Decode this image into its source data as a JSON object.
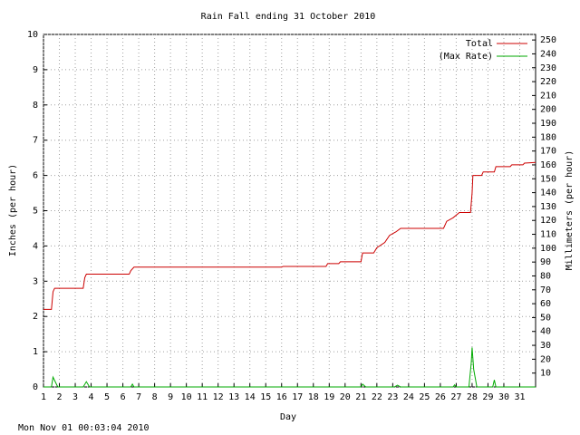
{
  "chart_data": {
    "type": "line",
    "title": "Rain Fall ending 31 October 2010",
    "x_label": "Day",
    "y_label": "Inches (per hour)",
    "y2_label": "Millimeters (per hour)",
    "footer": "Mon Nov 01 00:03:04 2010",
    "xlim": [
      1,
      32
    ],
    "xticks": [
      1,
      2,
      3,
      4,
      5,
      6,
      7,
      8,
      9,
      10,
      11,
      12,
      13,
      14,
      15,
      16,
      17,
      18,
      19,
      20,
      21,
      22,
      23,
      24,
      25,
      26,
      27,
      28,
      29,
      30,
      31
    ],
    "ylim": [
      0,
      10
    ],
    "yticks": [
      0,
      1,
      2,
      3,
      4,
      5,
      6,
      7,
      8,
      9,
      10
    ],
    "y2lim": [
      0,
      254
    ],
    "y2ticks": [
      10,
      20,
      30,
      40,
      50,
      60,
      70,
      80,
      90,
      100,
      110,
      120,
      130,
      140,
      150,
      160,
      170,
      180,
      190,
      200,
      210,
      220,
      230,
      240,
      250
    ],
    "grid": true,
    "legend": "top-right",
    "series": [
      {
        "name": "Total",
        "color": "#cc0000",
        "x": [
          1,
          1.5,
          1.6,
          1.7,
          3.5,
          3.6,
          3.7,
          6.4,
          6.5,
          6.7,
          16,
          16.1,
          18.8,
          18.9,
          19.6,
          19.7,
          21,
          21.1,
          21.8,
          22,
          22.5,
          22.8,
          23.2,
          23.5,
          26.2,
          26.4,
          26.8,
          27.2,
          27.9,
          28,
          28.05,
          28.6,
          28.7,
          29.4,
          29.5,
          30.4,
          30.5,
          31.2,
          31.3,
          32
        ],
        "values": [
          2.2,
          2.2,
          2.7,
          2.8,
          2.8,
          3.1,
          3.2,
          3.2,
          3.3,
          3.4,
          3.4,
          3.42,
          3.42,
          3.5,
          3.5,
          3.55,
          3.55,
          3.8,
          3.8,
          3.95,
          4.1,
          4.3,
          4.4,
          4.5,
          4.5,
          4.7,
          4.8,
          4.95,
          4.95,
          5.5,
          6,
          6,
          6.1,
          6.1,
          6.25,
          6.25,
          6.3,
          6.3,
          6.35,
          6.37
        ]
      },
      {
        "name": "(Max Rate)",
        "color": "#00aa00",
        "x": [
          1,
          1.5,
          1.6,
          1.9,
          3.5,
          3.7,
          3.9,
          6.5,
          6.6,
          6.7,
          21,
          21.1,
          21.3,
          23.1,
          23.3,
          23.5,
          26.8,
          26.9,
          27,
          27.8,
          27.95,
          28,
          28.1,
          28.3,
          29.3,
          29.4,
          29.5,
          32
        ],
        "values": [
          0,
          0,
          0.28,
          0,
          0,
          0.15,
          0,
          0,
          0.08,
          0,
          0,
          0.08,
          0,
          0,
          0.05,
          0,
          0,
          0.06,
          0,
          0,
          0.7,
          1.12,
          0.5,
          0,
          0,
          0.2,
          0,
          0
        ]
      }
    ]
  }
}
